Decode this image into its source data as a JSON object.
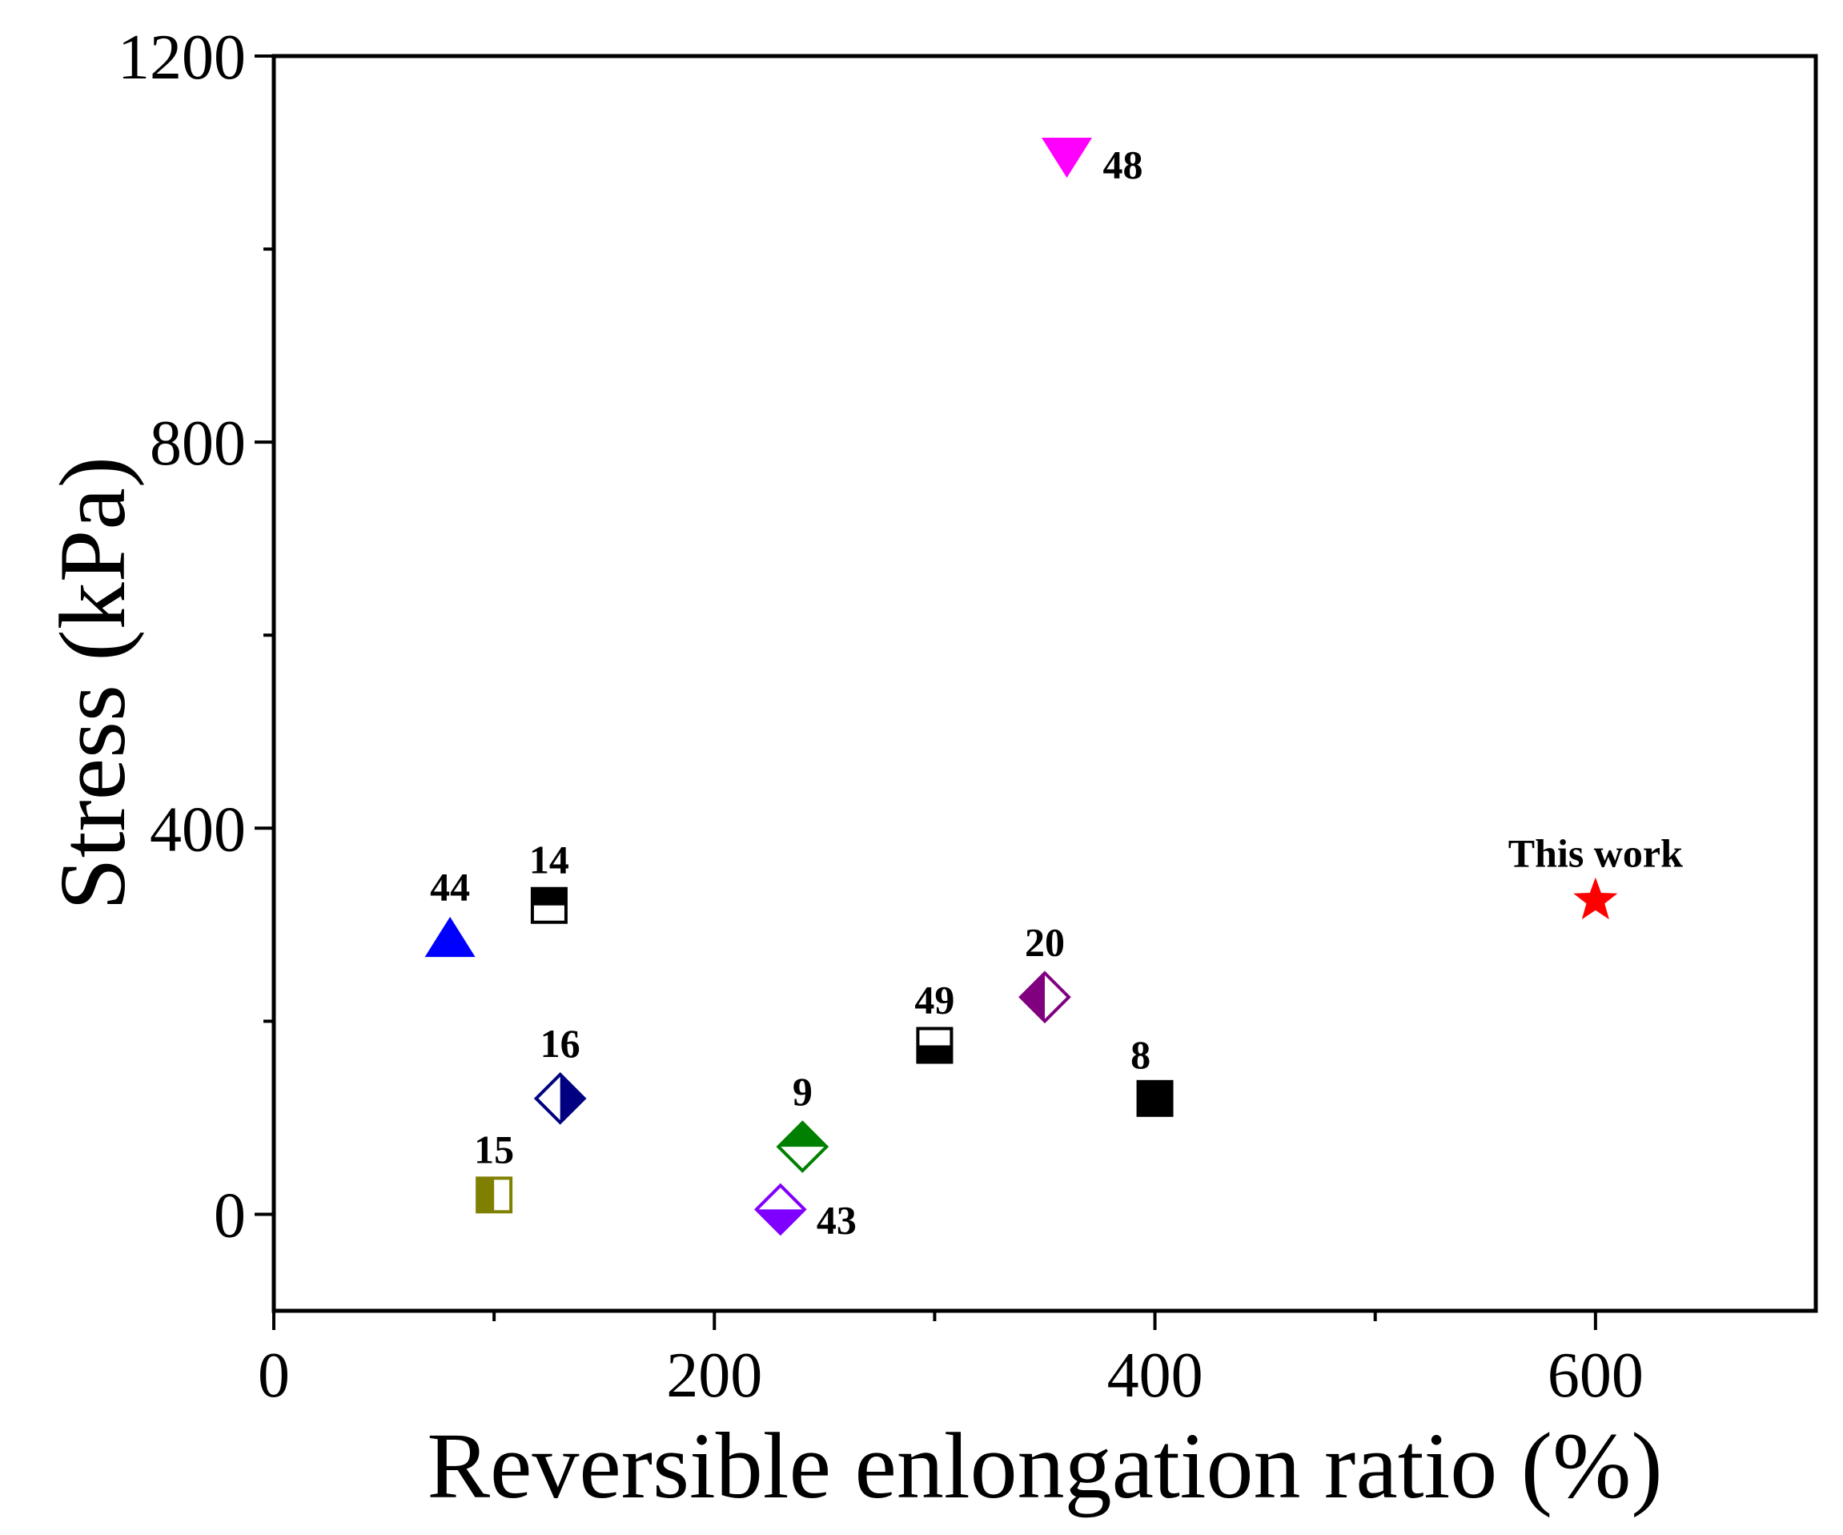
{
  "chart_data": {
    "type": "scatter",
    "title": "",
    "xlabel": "Reversible enlongation ratio (%)",
    "ylabel": "Stress (kPa)",
    "xlim": [
      0,
      700
    ],
    "ylim": [
      -100,
      1200
    ],
    "x_major_ticks": [
      0,
      200,
      400,
      600
    ],
    "x_tick_labels": [
      "0",
      "200",
      "400",
      "600"
    ],
    "x_minor_ticks": [
      100,
      300,
      500
    ],
    "y_major_ticks": [
      0,
      400,
      800,
      1200
    ],
    "y_tick_labels": [
      "0",
      "400",
      "800",
      "1200"
    ],
    "y_minor_ticks": [
      200,
      600,
      1000
    ],
    "legend": "none",
    "points": [
      {
        "ref": "44",
        "x": 80,
        "y": 282,
        "marker": "triangle-up",
        "fill": "full",
        "color": "#0000ff",
        "label_pos": "above"
      },
      {
        "ref": "14",
        "x": 125,
        "y": 320,
        "marker": "square",
        "fill": "top",
        "color": "#000000",
        "label_pos": "above"
      },
      {
        "ref": "16",
        "x": 130,
        "y": 120,
        "marker": "diamond",
        "fill": "right",
        "color": "#000080",
        "label_pos": "above"
      },
      {
        "ref": "15",
        "x": 100,
        "y": 20,
        "marker": "square",
        "fill": "left",
        "color": "#808000",
        "label_pos": "above"
      },
      {
        "ref": "9",
        "x": 240,
        "y": 70,
        "marker": "diamond",
        "fill": "top",
        "color": "#008000",
        "label_pos": "above"
      },
      {
        "ref": "43",
        "x": 230,
        "y": 5,
        "marker": "diamond",
        "fill": "bottom",
        "color": "#8000ff",
        "label_pos": "right"
      },
      {
        "ref": "49",
        "x": 300,
        "y": 175,
        "marker": "square",
        "fill": "bottom",
        "color": "#000000",
        "label_pos": "above"
      },
      {
        "ref": "20",
        "x": 350,
        "y": 225,
        "marker": "diamond",
        "fill": "left",
        "color": "#800080",
        "label_pos": "above"
      },
      {
        "ref": "8",
        "x": 400,
        "y": 120,
        "marker": "square",
        "fill": "full",
        "color": "#000000",
        "label_pos": "above-left"
      },
      {
        "ref": "48",
        "x": 360,
        "y": 1100,
        "marker": "triangle-down",
        "fill": "full",
        "color": "#ff00ff",
        "label_pos": "right"
      },
      {
        "ref": "This work",
        "x": 600,
        "y": 325,
        "marker": "star",
        "fill": "full",
        "color": "#ff0000",
        "label_pos": "above"
      }
    ]
  }
}
